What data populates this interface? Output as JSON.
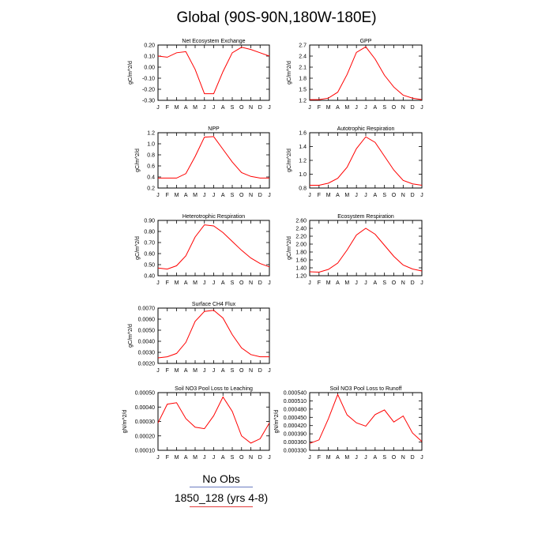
{
  "title": "Global (90S-90N,180W-180E)",
  "legend": [
    {
      "label": "No Obs",
      "color": "#6a7cc0"
    },
    {
      "label": "1850_128 (yrs 4-8)",
      "color": "#e23c3c"
    }
  ],
  "line_color": "#ff0000",
  "chart_data": [
    {
      "type": "line",
      "title": "Net Ecosystem Exchange",
      "ylabel": "gC/m^2/d",
      "categories": [
        "J",
        "F",
        "M",
        "A",
        "M",
        "J",
        "J",
        "A",
        "S",
        "O",
        "N",
        "D",
        "J"
      ],
      "ylim": [
        -0.3,
        0.2
      ],
      "yticks": [
        "-0.30",
        "-0.20",
        "-0.10",
        "0.00",
        "0.10",
        "0.20"
      ],
      "series": [
        {
          "values": [
            0.1,
            0.09,
            0.13,
            0.14,
            -0.02,
            -0.24,
            -0.24,
            -0.04,
            0.13,
            0.18,
            0.16,
            0.13,
            0.1
          ]
        }
      ]
    },
    {
      "type": "line",
      "title": "GPP",
      "ylabel": "gC/m^2/d",
      "categories": [
        "J",
        "F",
        "M",
        "A",
        "M",
        "J",
        "J",
        "A",
        "S",
        "O",
        "N",
        "D",
        "J"
      ],
      "ylim": [
        1.2,
        2.7
      ],
      "yticks": [
        "1.2",
        "1.5",
        "1.8",
        "2.1",
        "2.4",
        "2.7"
      ],
      "series": [
        {
          "values": [
            1.22,
            1.22,
            1.26,
            1.42,
            1.9,
            2.5,
            2.65,
            2.32,
            1.88,
            1.56,
            1.34,
            1.26,
            1.22
          ]
        }
      ]
    },
    {
      "type": "line",
      "title": "NPP",
      "ylabel": "gC/m^2/d",
      "categories": [
        "J",
        "F",
        "M",
        "A",
        "M",
        "J",
        "J",
        "A",
        "S",
        "O",
        "N",
        "D",
        "J"
      ],
      "ylim": [
        0.2,
        1.2
      ],
      "yticks": [
        "0.2",
        "0.4",
        "0.6",
        "0.8",
        "1.0",
        "1.2"
      ],
      "series": [
        {
          "values": [
            0.38,
            0.38,
            0.38,
            0.46,
            0.77,
            1.12,
            1.13,
            0.9,
            0.67,
            0.48,
            0.41,
            0.38,
            0.38
          ]
        }
      ]
    },
    {
      "type": "line",
      "title": "Autotrophic Respiration",
      "ylabel": "gC/m^2/d",
      "categories": [
        "J",
        "F",
        "M",
        "A",
        "M",
        "J",
        "J",
        "A",
        "S",
        "O",
        "N",
        "D",
        "J"
      ],
      "ylim": [
        0.8,
        1.6
      ],
      "yticks": [
        "0.8",
        "1.0",
        "1.2",
        "1.4",
        "1.6"
      ],
      "series": [
        {
          "values": [
            0.84,
            0.84,
            0.87,
            0.94,
            1.1,
            1.37,
            1.54,
            1.46,
            1.26,
            1.06,
            0.91,
            0.86,
            0.84
          ]
        }
      ]
    },
    {
      "type": "line",
      "title": "Heterotrophic Respiration",
      "ylabel": "gC/m^2/d",
      "categories": [
        "J",
        "F",
        "M",
        "A",
        "M",
        "J",
        "J",
        "A",
        "S",
        "O",
        "N",
        "D",
        "J"
      ],
      "ylim": [
        0.4,
        0.9
      ],
      "yticks": [
        "0.40",
        "0.50",
        "0.60",
        "0.70",
        "0.80",
        "0.90"
      ],
      "series": [
        {
          "values": [
            0.47,
            0.46,
            0.49,
            0.58,
            0.75,
            0.86,
            0.85,
            0.79,
            0.71,
            0.63,
            0.56,
            0.51,
            0.48
          ]
        }
      ]
    },
    {
      "type": "line",
      "title": "Ecosystem Respiration",
      "ylabel": "gC/m^2/d",
      "categories": [
        "J",
        "F",
        "M",
        "A",
        "M",
        "J",
        "J",
        "A",
        "S",
        "O",
        "N",
        "D",
        "J"
      ],
      "ylim": [
        1.2,
        2.6
      ],
      "yticks": [
        "1.20",
        "1.40",
        "1.60",
        "1.80",
        "2.00",
        "2.20",
        "2.40",
        "2.60"
      ],
      "series": [
        {
          "values": [
            1.3,
            1.29,
            1.36,
            1.52,
            1.85,
            2.23,
            2.4,
            2.25,
            1.97,
            1.69,
            1.47,
            1.37,
            1.32
          ]
        }
      ]
    },
    {
      "type": "line",
      "title": "Surface CH4 Flux",
      "ylabel": "gC/m^2/d",
      "categories": [
        "J",
        "F",
        "M",
        "A",
        "M",
        "J",
        "J",
        "A",
        "S",
        "O",
        "N",
        "D",
        "J"
      ],
      "ylim": [
        0.002,
        0.007
      ],
      "yticks": [
        "0.0020",
        "0.0030",
        "0.0040",
        "0.0050",
        "0.0060",
        "0.0070"
      ],
      "series": [
        {
          "values": [
            0.0025,
            0.0026,
            0.0029,
            0.0039,
            0.0058,
            0.0067,
            0.0068,
            0.0061,
            0.0046,
            0.0034,
            0.0028,
            0.0026,
            0.0026
          ]
        }
      ]
    },
    {
      "type": "line",
      "title": "Soil NO3 Pool Loss to Leaching",
      "ylabel": "gN/m^2/d",
      "categories": [
        "J",
        "F",
        "M",
        "A",
        "M",
        "J",
        "J",
        "A",
        "S",
        "O",
        "N",
        "D",
        "J"
      ],
      "ylim": [
        0.0001,
        0.0005
      ],
      "yticks": [
        "0.00010",
        "0.00020",
        "0.00030",
        "0.00040",
        "0.00050"
      ],
      "series": [
        {
          "values": [
            0.00029,
            0.00042,
            0.00043,
            0.00032,
            0.00026,
            0.00025,
            0.00034,
            0.00047,
            0.00037,
            0.0002,
            0.00015,
            0.00018,
            0.00029
          ]
        }
      ]
    },
    {
      "type": "line",
      "title": "Soil NO3 Pool Loss to Runoff",
      "ylabel": "gN/m^2/d",
      "categories": [
        "J",
        "F",
        "M",
        "A",
        "M",
        "J",
        "J",
        "A",
        "S",
        "O",
        "N",
        "D",
        "J"
      ],
      "ylim": [
        0.00033,
        0.00054
      ],
      "yticks": [
        "0.000330",
        "0.000360",
        "0.000390",
        "0.000420",
        "0.000450",
        "0.000480",
        "0.000510",
        "0.000540"
      ],
      "series": [
        {
          "values": [
            0.000355,
            0.000368,
            0.000445,
            0.000533,
            0.000459,
            0.00043,
            0.000418,
            0.00046,
            0.000477,
            0.000433,
            0.000455,
            0.000393,
            0.000362
          ]
        }
      ]
    }
  ]
}
